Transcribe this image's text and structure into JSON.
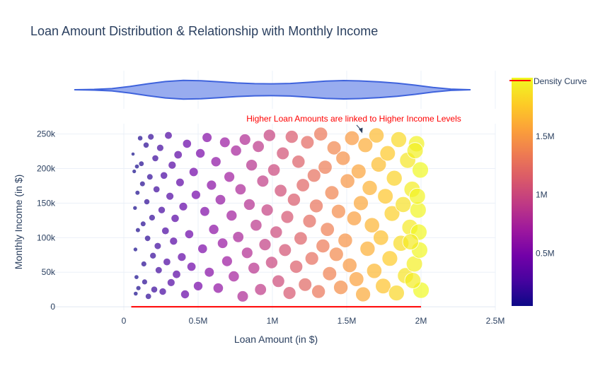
{
  "chart_data": {
    "type": "scatter",
    "title": "Loan Amount Distribution & Relationship with Monthly Income",
    "xlabel": "Loan Amount (in $)",
    "ylabel": "Monthly Income (in $)",
    "xlim": [
      -500000,
      2500000
    ],
    "ylim": [
      -5000,
      265000
    ],
    "x_ticks": [
      0,
      500000,
      1000000,
      1500000,
      2000000,
      2500000
    ],
    "x_tick_labels": [
      "0",
      "0.5M",
      "1M",
      "1.5M",
      "2M",
      "2.5M"
    ],
    "y_ticks": [
      0,
      50000,
      100000,
      150000,
      200000,
      250000
    ],
    "y_tick_labels": [
      "0",
      "50k",
      "100k",
      "150k",
      "200k",
      "250k"
    ],
    "grid": true,
    "marker_size_by": "loan_amount",
    "marker_color_by": "loan_amount",
    "marker_opacity": 0.7,
    "colorscale": [
      "#0d0887",
      "#46039f",
      "#7201a8",
      "#9c179e",
      "#bd3786",
      "#d8576b",
      "#ed7953",
      "#fb9f3a",
      "#fdca26",
      "#f0f921"
    ],
    "colorbar": {
      "range": [
        50000,
        2000000
      ],
      "ticks": [
        500000,
        1000000,
        1500000
      ],
      "tick_labels": [
        "0.5M",
        "1M",
        "1.5M"
      ]
    },
    "annotation": {
      "text": "Higher Loan Amounts are linked to Higher Income Levels",
      "x": 1600000,
      "y": 250000,
      "color": "#ff0000"
    },
    "density_curve": {
      "name": "Density Curve",
      "color": "#ff0000",
      "x_range": [
        50000,
        2000000
      ],
      "y_value": 0
    },
    "violin": {
      "orientation": "horizontal",
      "fill": "#98acef",
      "line": "#3f63dc",
      "x": [
        -330000,
        -200000,
        -80000,
        40000,
        160000,
        280000,
        400000,
        520000,
        640000,
        760000,
        880000,
        1000000,
        1120000,
        1240000,
        1360000,
        1480000,
        1600000,
        1720000,
        1840000,
        1960000,
        2080000,
        2200000,
        2330000
      ],
      "half_width": [
        0.0,
        0.04,
        0.12,
        0.34,
        0.62,
        0.86,
        0.98,
        0.95,
        0.84,
        0.71,
        0.64,
        0.62,
        0.66,
        0.78,
        0.9,
        0.96,
        0.92,
        0.82,
        0.68,
        0.48,
        0.24,
        0.07,
        0.0
      ]
    },
    "series": [
      {
        "points": [
          [
            62000,
            221000
          ],
          [
            70000,
            196000
          ],
          [
            75000,
            143000
          ],
          [
            78000,
            83000
          ],
          [
            80000,
            19000
          ],
          [
            85000,
            43000
          ],
          [
            88000,
            203000
          ],
          [
            92000,
            165000
          ],
          [
            95000,
            111000
          ],
          [
            98000,
            27000
          ],
          [
            110000,
            244000
          ],
          [
            118000,
            207000
          ],
          [
            125000,
            178000
          ],
          [
            130000,
            120000
          ],
          [
            135000,
            62000
          ],
          [
            140000,
            36000
          ],
          [
            150000,
            234000
          ],
          [
            155000,
            152000
          ],
          [
            160000,
            99000
          ],
          [
            165000,
            15000
          ],
          [
            175000,
            188000
          ],
          [
            182000,
            246000
          ],
          [
            190000,
            129000
          ],
          [
            196000,
            74000
          ],
          [
            205000,
            25000
          ],
          [
            212000,
            215000
          ],
          [
            220000,
            170000
          ],
          [
            228000,
            88000
          ],
          [
            235000,
            53000
          ],
          [
            245000,
            230000
          ],
          [
            255000,
            140000
          ],
          [
            262000,
            22000
          ],
          [
            270000,
            190000
          ],
          [
            280000,
            110000
          ],
          [
            290000,
            65000
          ],
          [
            300000,
            248000
          ],
          [
            310000,
            160000
          ],
          [
            318000,
            35000
          ],
          [
            325000,
            205000
          ],
          [
            335000,
            95000
          ],
          [
            345000,
            128000
          ],
          [
            355000,
            47000
          ],
          [
            365000,
            220000
          ],
          [
            378000,
            180000
          ],
          [
            390000,
            72000
          ],
          [
            400000,
            145000
          ],
          [
            412000,
            18000
          ],
          [
            425000,
            236000
          ],
          [
            440000,
            105000
          ],
          [
            455000,
            58000
          ],
          [
            470000,
            195000
          ],
          [
            485000,
            162000
          ],
          [
            500000,
            30000
          ],
          [
            515000,
            222000
          ],
          [
            530000,
            84000
          ],
          [
            545000,
            138000
          ],
          [
            560000,
            245000
          ],
          [
            575000,
            50000
          ],
          [
            590000,
            176000
          ],
          [
            605000,
            112000
          ],
          [
            620000,
            210000
          ],
          [
            635000,
            27000
          ],
          [
            650000,
            155000
          ],
          [
            665000,
            92000
          ],
          [
            680000,
            238000
          ],
          [
            695000,
            66000
          ],
          [
            710000,
            188000
          ],
          [
            725000,
            132000
          ],
          [
            740000,
            44000
          ],
          [
            755000,
            226000
          ],
          [
            770000,
            101000
          ],
          [
            785000,
            170000
          ],
          [
            800000,
            15000
          ],
          [
            815000,
            242000
          ],
          [
            830000,
            78000
          ],
          [
            845000,
            148000
          ],
          [
            860000,
            205000
          ],
          [
            875000,
            56000
          ],
          [
            890000,
            118000
          ],
          [
            905000,
            232000
          ],
          [
            920000,
            25000
          ],
          [
            935000,
            182000
          ],
          [
            950000,
            90000
          ],
          [
            965000,
            140000
          ],
          [
            980000,
            248000
          ],
          [
            995000,
            64000
          ],
          [
            1010000,
            198000
          ],
          [
            1025000,
            108000
          ],
          [
            1040000,
            37000
          ],
          [
            1055000,
            168000
          ],
          [
            1070000,
            222000
          ],
          [
            1085000,
            82000
          ],
          [
            1100000,
            130000
          ],
          [
            1115000,
            20000
          ],
          [
            1130000,
            246000
          ],
          [
            1145000,
            155000
          ],
          [
            1160000,
            58000
          ],
          [
            1175000,
            210000
          ],
          [
            1190000,
            99000
          ],
          [
            1205000,
            176000
          ],
          [
            1220000,
            32000
          ],
          [
            1235000,
            238000
          ],
          [
            1250000,
            124000
          ],
          [
            1265000,
            70000
          ],
          [
            1280000,
            190000
          ],
          [
            1295000,
            146000
          ],
          [
            1310000,
            22000
          ],
          [
            1325000,
            250000
          ],
          [
            1340000,
            88000
          ],
          [
            1355000,
            202000
          ],
          [
            1370000,
            112000
          ],
          [
            1385000,
            48000
          ],
          [
            1400000,
            165000
          ],
          [
            1415000,
            230000
          ],
          [
            1430000,
            76000
          ],
          [
            1445000,
            138000
          ],
          [
            1460000,
            28000
          ],
          [
            1475000,
            215000
          ],
          [
            1490000,
            96000
          ],
          [
            1505000,
            182000
          ],
          [
            1520000,
            60000
          ],
          [
            1535000,
            244000
          ],
          [
            1550000,
            128000
          ],
          [
            1565000,
            40000
          ],
          [
            1580000,
            196000
          ],
          [
            1595000,
            150000
          ],
          [
            1610000,
            18000
          ],
          [
            1625000,
            234000
          ],
          [
            1640000,
            84000
          ],
          [
            1655000,
            172000
          ],
          [
            1670000,
            118000
          ],
          [
            1685000,
            52000
          ],
          [
            1700000,
            248000
          ],
          [
            1715000,
            206000
          ],
          [
            1730000,
            100000
          ],
          [
            1745000,
            30000
          ],
          [
            1760000,
            160000
          ],
          [
            1775000,
            222000
          ],
          [
            1790000,
            70000
          ],
          [
            1805000,
            135000
          ],
          [
            1820000,
            186000
          ],
          [
            1835000,
            20000
          ],
          [
            1850000,
            242000
          ],
          [
            1865000,
            92000
          ],
          [
            1880000,
            148000
          ],
          [
            1895000,
            45000
          ],
          [
            1910000,
            212000
          ],
          [
            1925000,
            115000
          ],
          [
            1940000,
            170000
          ],
          [
            1955000,
            62000
          ],
          [
            1970000,
            236000
          ],
          [
            1980000,
            140000
          ],
          [
            1990000,
            82000
          ],
          [
            1995000,
            198000
          ],
          [
            2000000,
            24000
          ],
          [
            1985000,
            108000
          ],
          [
            1975000,
            160000
          ],
          [
            1960000,
            226000
          ],
          [
            1945000,
            38000
          ],
          [
            1930000,
            94000
          ]
        ]
      }
    ]
  }
}
